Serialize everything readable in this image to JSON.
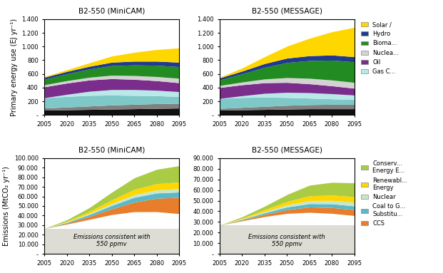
{
  "chart_data": [
    {
      "type": "area",
      "stacked": true,
      "title": "B2-550 (MiniCAM)",
      "ylabel": "Primary energy use (EJ yr⁻¹)",
      "x": [
        2005,
        2020,
        2035,
        2050,
        2065,
        2080,
        2095
      ],
      "xlim": [
        2005,
        2095
      ],
      "xticks": [
        2005,
        2020,
        2035,
        2050,
        2065,
        2080,
        2095
      ],
      "ylim": [
        0,
        1400
      ],
      "yticks": [
        {
          "value": 0,
          "label": "-"
        },
        200,
        400,
        600,
        800,
        {
          "value": 1000,
          "label": "1.000"
        },
        {
          "value": 1200,
          "label": "1.200"
        },
        {
          "value": 1400,
          "label": "1.400"
        }
      ],
      "series": [
        {
          "color": "#111111",
          "values": [
            70,
            75,
            80,
            85,
            90,
            95,
            100
          ]
        },
        {
          "color": "#808080",
          "values": [
            30,
            40,
            50,
            60,
            65,
            70,
            70
          ]
        },
        {
          "color": "#7FC8C8",
          "values": [
            150,
            155,
            155,
            145,
            130,
            115,
            100
          ]
        },
        {
          "name": "Gas C...",
          "color": "#B8E8E8",
          "values": [
            0,
            30,
            60,
            80,
            85,
            80,
            70
          ]
        },
        {
          "name": "Oil",
          "color": "#7B2D8B",
          "values": [
            160,
            165,
            165,
            160,
            150,
            140,
            130
          ]
        },
        {
          "name": "Nuclea...",
          "color": "#D3D3D3",
          "values": [
            30,
            35,
            40,
            50,
            55,
            60,
            65
          ]
        },
        {
          "name": "Bioma...",
          "color": "#228B22",
          "values": [
            80,
            100,
            120,
            140,
            155,
            165,
            170
          ]
        },
        {
          "name": "Hydro",
          "color": "#1F3A8F",
          "values": [
            30,
            35,
            40,
            50,
            55,
            60,
            65
          ]
        },
        {
          "name": "Solar /",
          "color": "#FFD700",
          "values": [
            10,
            25,
            50,
            90,
            130,
            170,
            210
          ]
        }
      ]
    },
    {
      "type": "area",
      "stacked": true,
      "title": "B2-550 (MESSAGE)",
      "legend": "upper left",
      "x": [
        2005,
        2020,
        2035,
        2050,
        2065,
        2080,
        2095
      ],
      "xlim": [
        2005,
        2095
      ],
      "xticks": [
        2005,
        2020,
        2035,
        2050,
        2065,
        2080,
        2095
      ],
      "ylim": [
        0,
        1400
      ],
      "yticks": [
        {
          "value": 0,
          "label": "-"
        },
        200,
        400,
        600,
        800,
        {
          "value": 1000,
          "label": "1.000"
        },
        {
          "value": 1200,
          "label": "1.200"
        },
        {
          "value": 1400,
          "label": "1.400"
        }
      ],
      "series": [
        {
          "color": "#111111",
          "values": [
            70,
            75,
            80,
            85,
            90,
            90,
            90
          ]
        },
        {
          "color": "#808080",
          "values": [
            25,
            35,
            45,
            55,
            60,
            65,
            65
          ]
        },
        {
          "color": "#7FC8C8",
          "values": [
            145,
            145,
            135,
            115,
            95,
            80,
            70
          ]
        },
        {
          "name": "Gas C...",
          "color": "#B8E8E8",
          "values": [
            0,
            25,
            55,
            75,
            80,
            75,
            65
          ]
        },
        {
          "name": "Oil",
          "color": "#7B2D8B",
          "values": [
            160,
            160,
            155,
            145,
            130,
            115,
            100
          ]
        },
        {
          "name": "Nuclea...",
          "color": "#D3D3D3",
          "values": [
            30,
            40,
            55,
            70,
            80,
            85,
            85
          ]
        },
        {
          "name": "Bioma...",
          "color": "#228B22",
          "values": [
            80,
            120,
            170,
            220,
            260,
            290,
            300
          ]
        },
        {
          "name": "Hydro",
          "color": "#1F3A8F",
          "values": [
            30,
            40,
            55,
            65,
            70,
            75,
            75
          ]
        },
        {
          "name": "Solar /",
          "color": "#FFD700",
          "values": [
            10,
            45,
            100,
            175,
            255,
            340,
            430
          ]
        }
      ]
    },
    {
      "type": "area",
      "stacked": true,
      "title": "B2-550 (MiniCAM)",
      "ylabel": "Emissions (MtCO₂ yr⁻¹)",
      "annotation": "Emissions consistent with\n550 ppmv",
      "x": [
        2005,
        2020,
        2035,
        2050,
        2065,
        2080,
        2095
      ],
      "xlim": [
        2005,
        2095
      ],
      "xticks": [
        2005,
        2020,
        2035,
        2050,
        2065,
        2080,
        2095
      ],
      "ylim": [
        0,
        100000
      ],
      "yticks": [
        {
          "value": 0,
          "label": "-"
        },
        {
          "value": 10000,
          "label": "10.000"
        },
        {
          "value": 20000,
          "label": "20.000"
        },
        {
          "value": 30000,
          "label": "30.000"
        },
        {
          "value": 40000,
          "label": "40.000"
        },
        {
          "value": 50000,
          "label": "50.000"
        },
        {
          "value": 60000,
          "label": "60.000"
        },
        {
          "value": 70000,
          "label": "70.000"
        },
        {
          "value": 80000,
          "label": "80.000"
        },
        {
          "value": 90000,
          "label": "90.000"
        },
        {
          "value": 100000,
          "label": "100.000"
        }
      ],
      "baseline": [
        26500,
        31000,
        36000,
        41000,
        44000,
        44000,
        42000
      ],
      "series": [
        {
          "type": "fill",
          "color": "#DDDDD5",
          "values": [
            26500,
            26500,
            26500,
            26500,
            26500,
            26500,
            26500
          ]
        },
        {
          "name": "CCS",
          "color": "#E87D2B",
          "values": [
            0,
            1000,
            3000,
            6000,
            10000,
            14000,
            17000
          ]
        },
        {
          "name": "Coal to G...\nSubstitu...",
          "color": "#5BB8C8",
          "values": [
            0,
            800,
            2000,
            3500,
            5000,
            5500,
            5500
          ]
        },
        {
          "name": "Nuclear",
          "color": "#C8E6C9",
          "values": [
            0,
            500,
            1200,
            2000,
            2800,
            3200,
            3500
          ]
        },
        {
          "name": "Renewabl...\nEnergy",
          "color": "#FFD700",
          "values": [
            0,
            700,
            2000,
            3800,
            5500,
            6500,
            7000
          ]
        },
        {
          "name": "Conserv...\nEnergy E...",
          "color": "#AACC44",
          "values": [
            0,
            1500,
            4000,
            8000,
            12000,
            15000,
            17000
          ]
        }
      ]
    },
    {
      "type": "area",
      "stacked": true,
      "title": "B2-550 (MESSAGE)",
      "legend": "upper left",
      "annotation": "Emissions consistent with\n550 ppmv",
      "x": [
        2005,
        2020,
        2035,
        2050,
        2065,
        2080,
        2095
      ],
      "xlim": [
        2005,
        2095
      ],
      "xticks": [
        2005,
        2020,
        2035,
        2050,
        2065,
        2080,
        2095
      ],
      "ylim": [
        0,
        90000
      ],
      "yticks": [
        {
          "value": 0,
          "label": "-"
        },
        {
          "value": 10000,
          "label": "10.000"
        },
        {
          "value": 20000,
          "label": "20.000"
        },
        {
          "value": 30000,
          "label": "30.000"
        },
        {
          "value": 40000,
          "label": "40.000"
        },
        {
          "value": 50000,
          "label": "50.000"
        },
        {
          "value": 60000,
          "label": "60.000"
        },
        {
          "value": 70000,
          "label": "70.000"
        },
        {
          "value": 80000,
          "label": "80.000"
        },
        {
          "value": 90000,
          "label": "90.000"
        }
      ],
      "baseline": [
        27000,
        31000,
        35000,
        38000,
        39000,
        38000,
        36000
      ],
      "series": [
        {
          "type": "fill",
          "color": "#DDDDD5",
          "values": [
            27000,
            27000,
            27000,
            27000,
            27000,
            27000,
            27000
          ]
        },
        {
          "name": "CCS",
          "color": "#E87D2B",
          "values": [
            0,
            800,
            2000,
            3500,
            5000,
            5500,
            5500
          ]
        },
        {
          "name": "Coal to G...\nSubstitu...",
          "color": "#5BB8C8",
          "values": [
            0,
            600,
            1500,
            2500,
            3200,
            3500,
            3500
          ]
        },
        {
          "name": "Nuclear",
          "color": "#C8E6C9",
          "values": [
            0,
            500,
            1200,
            2000,
            2800,
            3200,
            3500
          ]
        },
        {
          "name": "Renewabl...\nEnergy",
          "color": "#FFD700",
          "values": [
            0,
            700,
            1800,
            3200,
            4500,
            5000,
            5200
          ]
        },
        {
          "name": "Conserv...\nEnergy E...",
          "color": "#AACC44",
          "values": [
            0,
            1200,
            3200,
            6500,
            10000,
            12000,
            13000
          ]
        }
      ]
    }
  ]
}
